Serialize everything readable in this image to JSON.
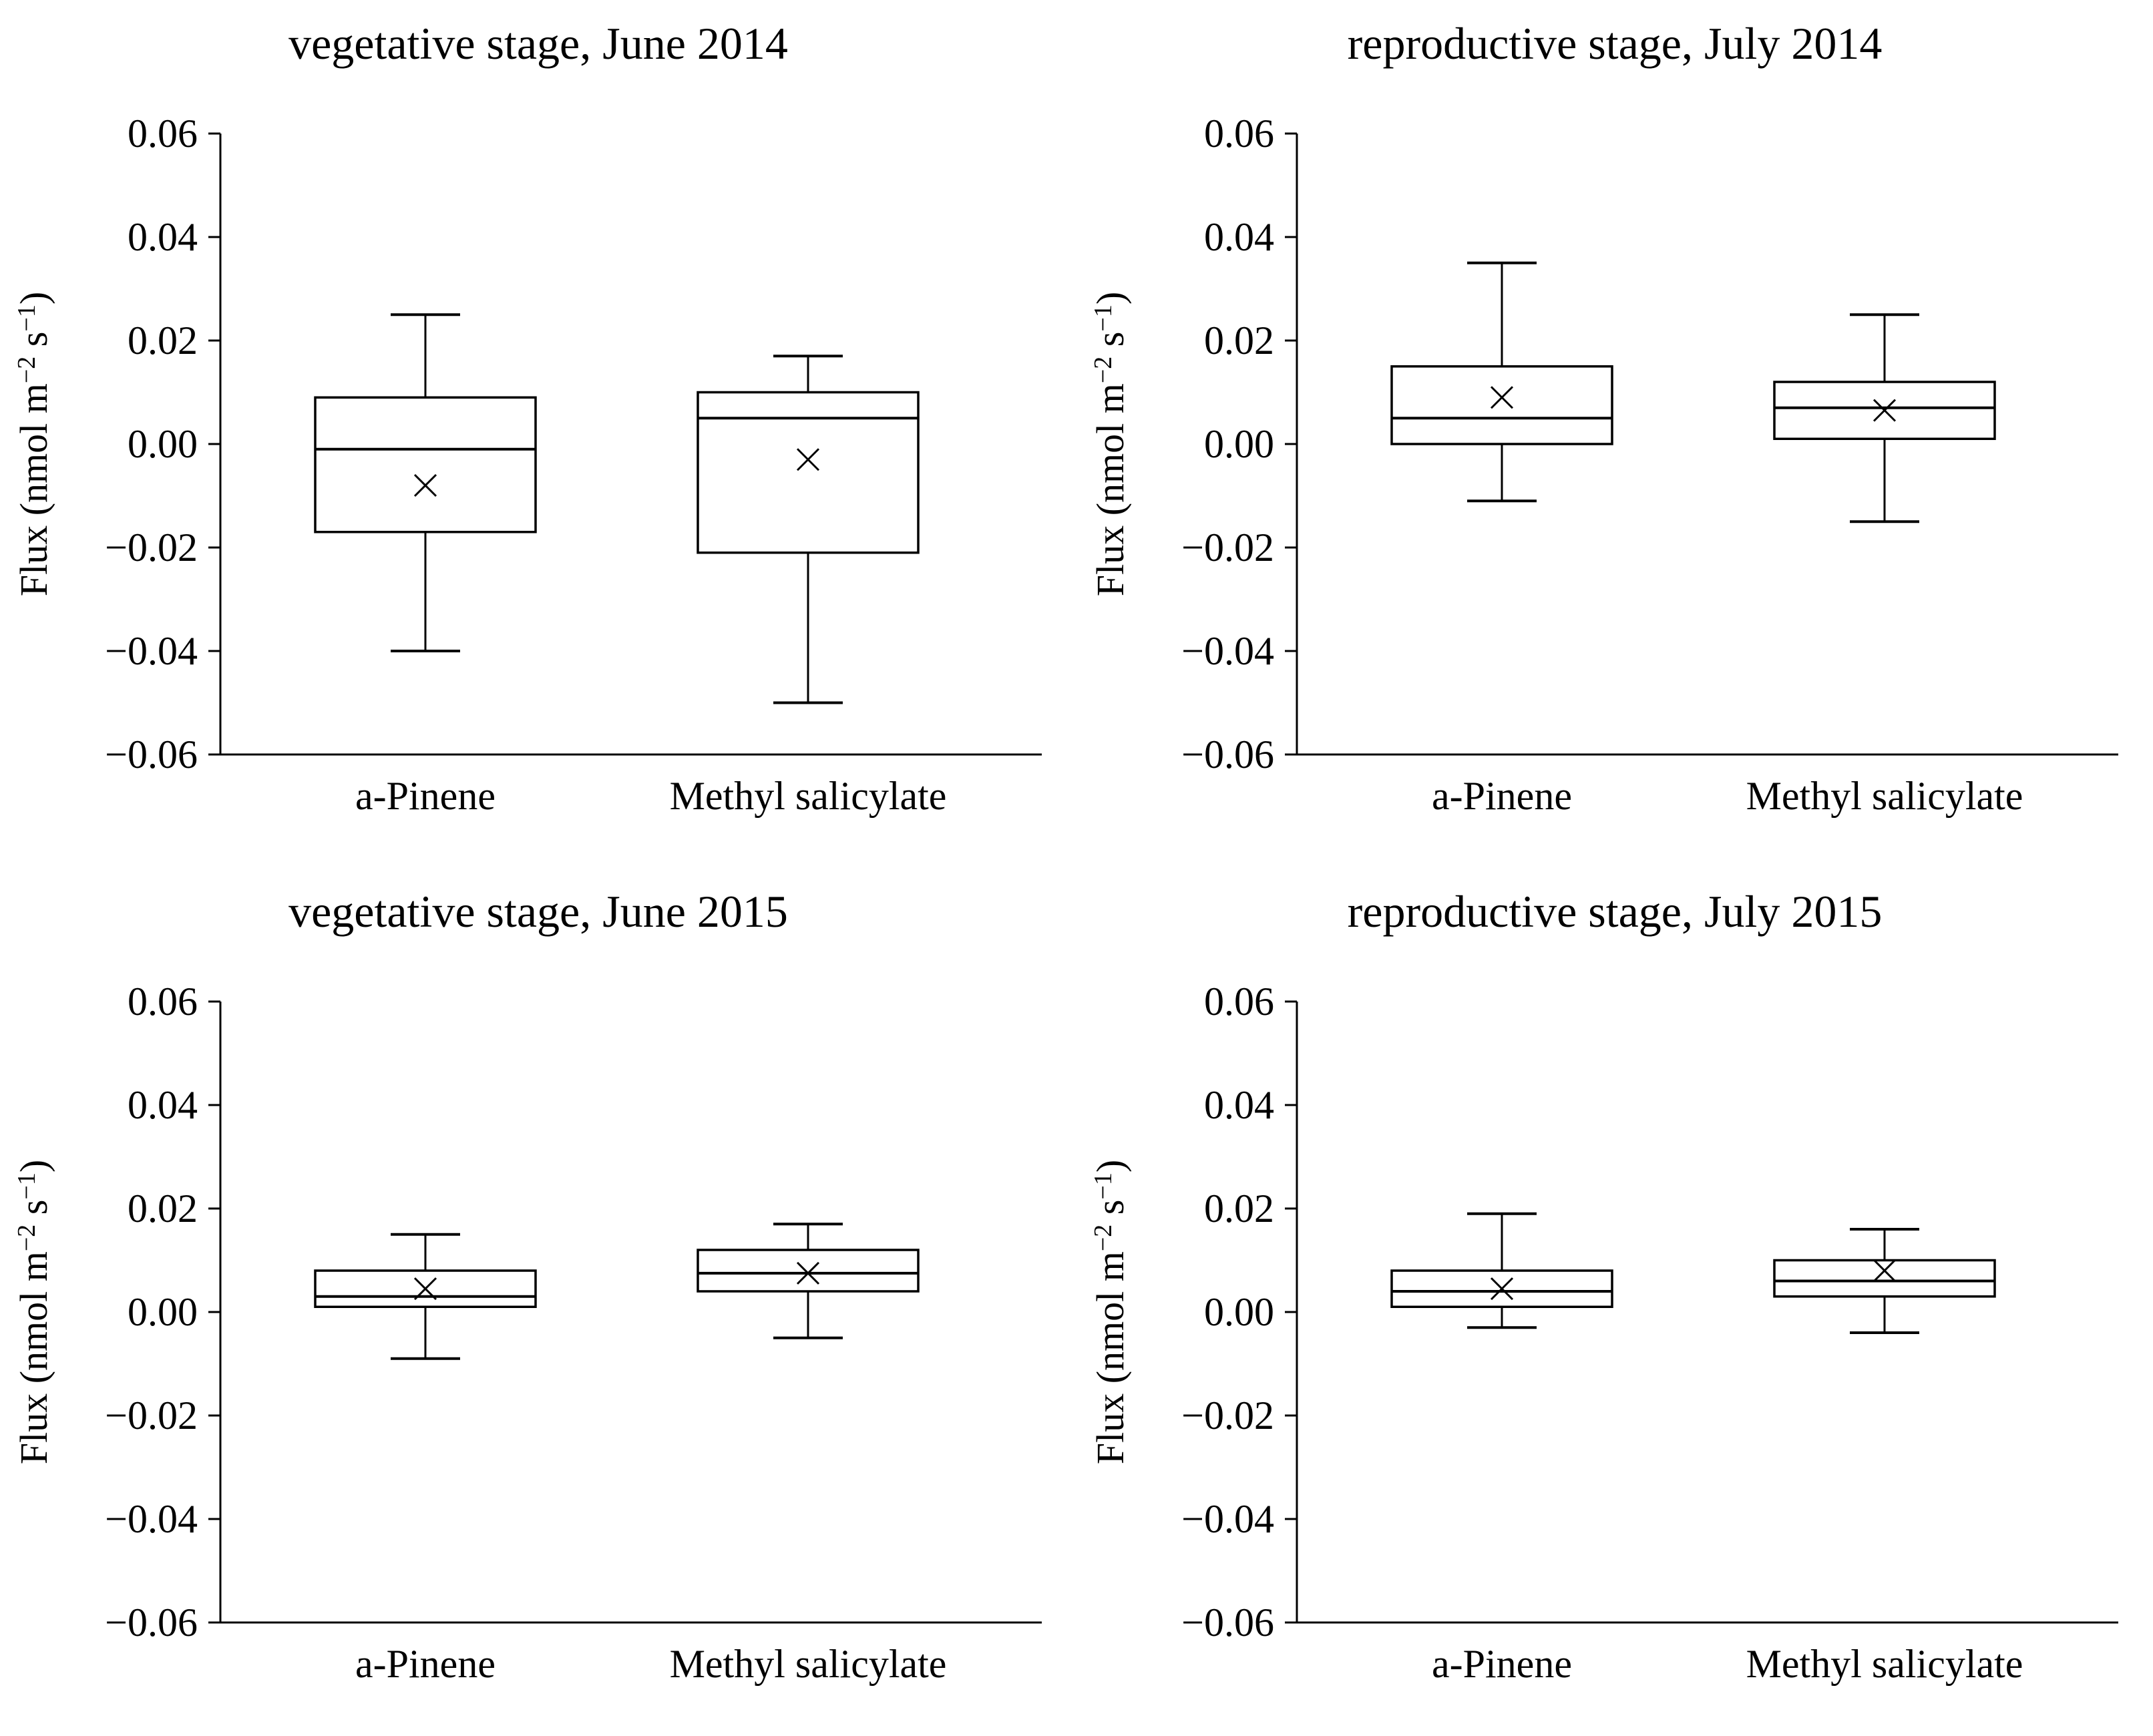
{
  "figure": {
    "background": "#ffffff",
    "line_color": "#000000",
    "y_axis_label": "Flux (nmol m⁻² s⁻¹)",
    "y_axis_label_parts": [
      {
        "text": "Flux (nmol m",
        "sup": false
      },
      {
        "text": "−2",
        "sup": true
      },
      {
        "text": " s",
        "sup": false
      },
      {
        "text": "−1",
        "sup": true
      },
      {
        "text": ")",
        "sup": false
      }
    ],
    "categories": [
      "a-Pinene",
      "Methyl salicylate"
    ],
    "y_ticks": [
      {
        "label": "0.06",
        "value": 0.06
      },
      {
        "label": "0.04",
        "value": 0.04
      },
      {
        "label": "0.02",
        "value": 0.02
      },
      {
        "label": "0.00",
        "value": 0.0
      },
      {
        "label": "−0.02",
        "value": -0.02
      },
      {
        "label": "−0.04",
        "value": -0.04
      },
      {
        "label": "−0.06",
        "value": -0.06
      }
    ],
    "ylim": [
      -0.06,
      0.06
    ],
    "grid": "off",
    "legend": "none"
  },
  "chart_data": [
    {
      "type": "boxplot",
      "title": "vegetative stage, June 2014",
      "ylabel": "Flux (nmol m⁻² s⁻¹)",
      "ylim": [
        -0.06,
        0.06
      ],
      "yticks": [
        0.06,
        0.04,
        0.02,
        0.0,
        -0.02,
        -0.04,
        -0.06
      ],
      "categories": [
        "a-Pinene",
        "Methyl salicylate"
      ],
      "series": [
        {
          "category": "a-Pinene",
          "whisker_low": -0.04,
          "q1": -0.017,
          "median": -0.001,
          "q3": 0.009,
          "whisker_high": 0.025,
          "mean": -0.008
        },
        {
          "category": "Methyl salicylate",
          "whisker_low": -0.05,
          "q1": -0.021,
          "median": 0.005,
          "q3": 0.01,
          "whisker_high": 0.017,
          "mean": -0.003
        }
      ]
    },
    {
      "type": "boxplot",
      "title": "reproductive stage, July 2014",
      "ylabel": "Flux (nmol m⁻² s⁻¹)",
      "ylim": [
        -0.06,
        0.06
      ],
      "yticks": [
        0.06,
        0.04,
        0.02,
        0.0,
        -0.02,
        -0.04,
        -0.06
      ],
      "categories": [
        "a-Pinene",
        "Methyl salicylate"
      ],
      "series": [
        {
          "category": "a-Pinene",
          "whisker_low": -0.011,
          "q1": 0.0,
          "median": 0.005,
          "q3": 0.015,
          "whisker_high": 0.035,
          "mean": 0.009
        },
        {
          "category": "Methyl salicylate",
          "whisker_low": -0.015,
          "q1": 0.001,
          "median": 0.007,
          "q3": 0.012,
          "whisker_high": 0.025,
          "mean": 0.0065
        }
      ]
    },
    {
      "type": "boxplot",
      "title": "vegetative stage, June 2015",
      "ylabel": "Flux (nmol m⁻² s⁻¹)",
      "ylim": [
        -0.06,
        0.06
      ],
      "yticks": [
        0.06,
        0.04,
        0.02,
        0.0,
        -0.02,
        -0.04,
        -0.06
      ],
      "categories": [
        "a-Pinene",
        "Methyl salicylate"
      ],
      "series": [
        {
          "category": "a-Pinene",
          "whisker_low": -0.009,
          "q1": 0.001,
          "median": 0.003,
          "q3": 0.008,
          "whisker_high": 0.015,
          "mean": 0.0045
        },
        {
          "category": "Methyl salicylate",
          "whisker_low": -0.005,
          "q1": 0.004,
          "median": 0.0075,
          "q3": 0.012,
          "whisker_high": 0.017,
          "mean": 0.0075
        }
      ]
    },
    {
      "type": "boxplot",
      "title": "reproductive stage, July 2015",
      "ylabel": "Flux (nmol m⁻² s⁻¹)",
      "ylim": [
        -0.06,
        0.06
      ],
      "yticks": [
        0.06,
        0.04,
        0.02,
        0.0,
        -0.02,
        -0.04,
        -0.06
      ],
      "categories": [
        "a-Pinene",
        "Methyl salicylate"
      ],
      "series": [
        {
          "category": "a-Pinene",
          "whisker_low": -0.003,
          "q1": 0.001,
          "median": 0.004,
          "q3": 0.008,
          "whisker_high": 0.019,
          "mean": 0.0045
        },
        {
          "category": "Methyl salicylate",
          "whisker_low": -0.004,
          "q1": 0.003,
          "median": 0.006,
          "q3": 0.01,
          "whisker_high": 0.016,
          "mean": 0.008
        }
      ]
    }
  ]
}
